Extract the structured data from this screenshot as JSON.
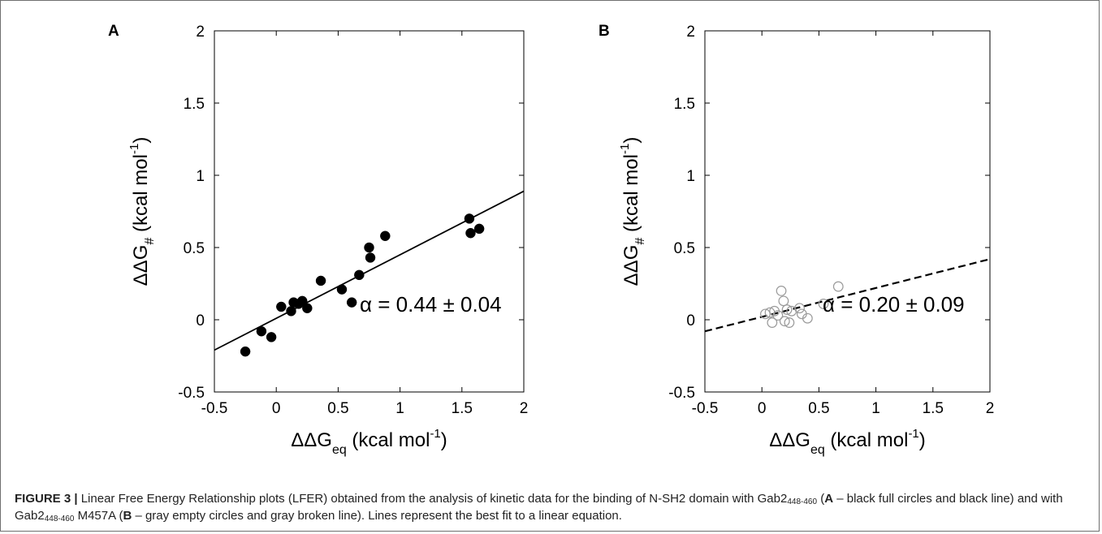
{
  "chart_data": [
    {
      "type": "scatter",
      "panel_label": "A",
      "xlabel": "ΔΔG_eq (kcal mol^-1)",
      "ylabel": "ΔΔG_# (kcal mol^-1)",
      "xlim": [
        -0.5,
        2
      ],
      "ylim": [
        -0.5,
        2
      ],
      "x_ticks": [
        "-0.5",
        "0",
        "0.5",
        "1",
        "1.5",
        "2"
      ],
      "y_ticks": [
        "-0.5",
        "0",
        "0.5",
        "1",
        "1.5",
        "2"
      ],
      "marker": "filled",
      "color": "#000000",
      "points": [
        [
          -0.25,
          -0.22
        ],
        [
          -0.12,
          -0.08
        ],
        [
          -0.04,
          -0.12
        ],
        [
          0.04,
          0.09
        ],
        [
          0.12,
          0.06
        ],
        [
          0.14,
          0.12
        ],
        [
          0.18,
          0.11
        ],
        [
          0.21,
          0.13
        ],
        [
          0.25,
          0.08
        ],
        [
          0.36,
          0.27
        ],
        [
          0.53,
          0.21
        ],
        [
          0.61,
          0.12
        ],
        [
          0.67,
          0.31
        ],
        [
          0.75,
          0.5
        ],
        [
          0.76,
          0.43
        ],
        [
          0.88,
          0.58
        ],
        [
          1.56,
          0.7
        ],
        [
          1.57,
          0.6
        ],
        [
          1.64,
          0.63
        ]
      ],
      "fit_line": {
        "style": "solid",
        "x": [
          -0.5,
          2.0
        ],
        "y": [
          -0.21,
          0.89
        ]
      },
      "annotation": "α = 0.44 ± 0.04"
    },
    {
      "type": "scatter",
      "panel_label": "B",
      "xlabel": "ΔΔG_eq (kcal mol^-1)",
      "ylabel": "ΔΔG_# (kcal mol^-1)",
      "xlim": [
        -0.5,
        2
      ],
      "ylim": [
        -0.5,
        2
      ],
      "x_ticks": [
        "-0.5",
        "0",
        "0.5",
        "1",
        "1.5",
        "2"
      ],
      "y_ticks": [
        "-0.5",
        "0",
        "0.5",
        "1",
        "1.5",
        "2"
      ],
      "marker": "open",
      "color": "#9a9a9a",
      "points": [
        [
          0.03,
          0.04
        ],
        [
          0.07,
          0.05
        ],
        [
          0.09,
          -0.02
        ],
        [
          0.11,
          0.06
        ],
        [
          0.14,
          0.03
        ],
        [
          0.17,
          0.2
        ],
        [
          0.19,
          0.13
        ],
        [
          0.2,
          -0.01
        ],
        [
          0.22,
          0.07
        ],
        [
          0.24,
          -0.02
        ],
        [
          0.26,
          0.06
        ],
        [
          0.33,
          0.08
        ],
        [
          0.35,
          0.04
        ],
        [
          0.4,
          0.01
        ],
        [
          0.54,
          0.11
        ],
        [
          0.67,
          0.23
        ]
      ],
      "fit_line": {
        "style": "dashed",
        "x": [
          -0.5,
          2.0
        ],
        "y": [
          -0.08,
          0.42
        ]
      },
      "annotation": "α = 0.20 ± 0.09"
    }
  ],
  "caption": {
    "figure_label": "FIGURE 3 |",
    "t1": " Linear Free Energy Relationship plots (LFER) obtained from the analysis of kinetic data for the binding of N-SH2 domain with Gab2",
    "sub1": "448-460",
    "t2": " (",
    "bA": "A",
    "t3": " – black full circles and black line) and with Gab2",
    "sub2": "448-460",
    "t4": " M457A (",
    "bB": "B",
    "t5": " – gray empty circles and gray broken line). Lines represent the best fit to a linear equation."
  },
  "axis_text": {
    "delta": "ΔΔG",
    "sub_eq": "eq",
    "sub_hash": "#",
    "unit": " (kcal mol",
    "sup": "-1",
    "close": ")"
  }
}
